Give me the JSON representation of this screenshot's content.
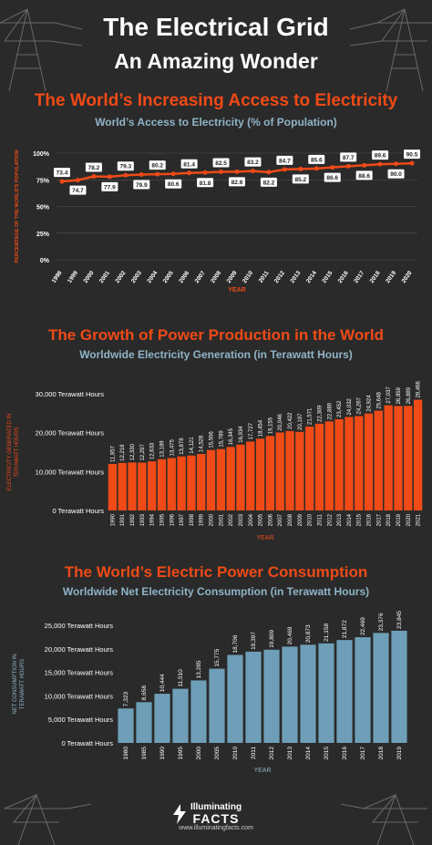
{
  "header": {
    "title_line1": "The Electrical Grid",
    "title_line2": "An Amazing Wonder"
  },
  "section1": {
    "title": "The World’s Increasing Access to Electricity",
    "subtitle": "World’s Access to Electricity (% of Population)"
  },
  "section2": {
    "title": "The Growth of Power Production in the World",
    "subtitle": "Worldwide Electricity Generation (in Terawatt Hours)"
  },
  "section3": {
    "title": "The World’s Electric Power Consumption",
    "subtitle": "Worldwide Net Electricity Consumption (in Terawatt Hours)"
  },
  "footer": {
    "brand_line1": "Illuminating",
    "brand_line2": "FACTS",
    "url": "www.illuminatingfacts.com"
  },
  "colors": {
    "background": "#2a2a2a",
    "accent_orange": "#f04a16",
    "accent_blue": "#8fb4c8",
    "bar_blue": "#6f9fb8",
    "white": "#ffffff"
  },
  "chart_data": [
    {
      "type": "line",
      "x": [
        "1998",
        "1999",
        "2000",
        "2001",
        "2002",
        "2003",
        "2004",
        "2005",
        "2006",
        "2007",
        "2008",
        "2009",
        "2010",
        "2011",
        "2012",
        "2013",
        "2014",
        "2015",
        "2016",
        "2017",
        "2018",
        "2019",
        "2020"
      ],
      "values": [
        73.4,
        74.7,
        78.2,
        77.9,
        79.3,
        79.9,
        80.2,
        80.6,
        81.4,
        81.8,
        82.5,
        82.6,
        83.2,
        82.2,
        84.7,
        85.2,
        85.6,
        86.6,
        87.7,
        88.6,
        89.6,
        90.0,
        90.5
      ],
      "data_labels": [
        "73.4",
        "74.7",
        "78.2",
        "77.9",
        "79.3",
        "79.9",
        "80.2",
        "80.6",
        "81.4",
        "81.8",
        "82.5",
        "82.6",
        "83.2",
        "82.2",
        "84.7",
        "85.2",
        "85.6",
        "86.6",
        "87.7",
        "88.6",
        "89.6",
        "90.0",
        "90.5"
      ],
      "yticks": [
        "0%",
        "25%",
        "50%",
        "75%",
        "100%"
      ],
      "ylim": [
        0,
        100
      ],
      "xlabel": "YEAR",
      "ylabel": "PERCENTAGE OF THE WORLD'S POPULATION",
      "grid": true,
      "color": "#f04a16"
    },
    {
      "type": "bar",
      "categories": [
        "1990",
        "1991",
        "1992",
        "1993",
        "1994",
        "1995",
        "1996",
        "1997",
        "1998",
        "1999",
        "2000",
        "2001",
        "2002",
        "2003",
        "2004",
        "2005",
        "2006",
        "2007",
        "2008",
        "2009",
        "2010",
        "2011",
        "2012",
        "2013",
        "2014",
        "2015",
        "2016",
        "2017",
        "2018",
        "2019",
        "2020",
        "2021"
      ],
      "values": [
        11957,
        12218,
        12330,
        12297,
        12633,
        13189,
        13475,
        13878,
        14121,
        14528,
        15556,
        15789,
        16345,
        16934,
        17727,
        18454,
        19155,
        20046,
        20422,
        20197,
        21571,
        22309,
        22889,
        23452,
        24032,
        24267,
        24924,
        25648,
        27037,
        26859,
        26889,
        28466
      ],
      "data_labels": [
        "11,957",
        "12,218",
        "12,330",
        "12,297",
        "12,633",
        "13,189",
        "13,475",
        "13,878",
        "14,121",
        "14,528",
        "15,556",
        "15,789",
        "16,345",
        "16,934",
        "17,727",
        "18,454",
        "19,155",
        "20,046",
        "20,422",
        "20,197",
        "21,571",
        "22,309",
        "22,889",
        "23,452",
        "24,032",
        "24,267",
        "24,924",
        "25,648",
        "27,037",
        "26,859",
        "26,889",
        "28,466"
      ],
      "yticks": [
        "0 Terawatt Hours",
        "10,000 Terawatt Hours",
        "20,000 Terawatt Hours",
        "30,000 Terawatt Hours"
      ],
      "ylim": [
        0,
        30000
      ],
      "xlabel": "YEAR",
      "ylabel": "ELECTRICITY GENERATED IN TERAWATT HOURS",
      "grid": false,
      "color": "#f04a16"
    },
    {
      "type": "bar",
      "categories": [
        "1980",
        "1985",
        "1990",
        "1995",
        "2000",
        "2005",
        "2010",
        "2011",
        "2012",
        "2013",
        "2014",
        "2015",
        "2016",
        "2017",
        "2018",
        "2019"
      ],
      "values": [
        7323,
        8658,
        10444,
        11510,
        13285,
        15775,
        18706,
        19397,
        19809,
        20469,
        20873,
        21158,
        21872,
        22469,
        23376,
        23845
      ],
      "data_labels": [
        "7,323",
        "8,658",
        "10,444",
        "11,510",
        "13,285",
        "15,775",
        "18,706",
        "19,397",
        "19,809",
        "20,469",
        "20,873",
        "21,158",
        "21,872",
        "22,469",
        "23,376",
        "23,845"
      ],
      "yticks": [
        "0 Terawatt Hours",
        "5,000 Terawatt Hours",
        "10,000 Terawatt Hours",
        "15,000 Terawatt Hours",
        "20,000 Terawatt Hours",
        "25,000 Terawatt Hours"
      ],
      "ylim": [
        0,
        25000
      ],
      "xlabel": "YEAR",
      "ylabel": "NET CONSUMPTION IN TERAWATT HOURS",
      "grid": false,
      "color": "#6f9fb8"
    }
  ]
}
